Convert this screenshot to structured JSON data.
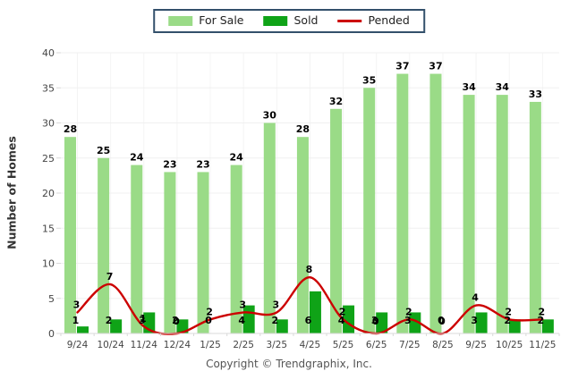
{
  "legend": {
    "for_sale": "For Sale",
    "sold": "Sold",
    "pended": "Pended"
  },
  "ylabel": "Number of Homes",
  "footer": "Copyright © Trendgraphix, Inc.",
  "colors": {
    "for_sale": "#9ADB87",
    "sold": "#0FA317",
    "pended": "#CC0000",
    "grid": "#F0F0F0",
    "vgrid": "#F4F4F4",
    "axis_line": "#D8D8D8",
    "tick": "#D9D9D9",
    "tick_text": "#444444",
    "value_label": "#000000",
    "legend_border": "#33506B"
  },
  "chart_data": {
    "type": "bar",
    "title": "",
    "xlabel": "",
    "ylabel": "Number of Homes",
    "ylim": [
      0,
      40
    ],
    "yticks": [
      0,
      5,
      10,
      15,
      20,
      25,
      30,
      35,
      40
    ],
    "grid": true,
    "legend_position": "top-center",
    "categories": [
      "9/24",
      "10/24",
      "11/24",
      "12/24",
      "1/25",
      "2/25",
      "3/25",
      "4/25",
      "5/25",
      "6/25",
      "7/25",
      "8/25",
      "9/25",
      "10/25",
      "11/25"
    ],
    "series": [
      {
        "name": "For Sale",
        "type": "bar",
        "values": [
          28,
          25,
          24,
          23,
          23,
          24,
          30,
          28,
          32,
          35,
          37,
          37,
          34,
          34,
          33
        ]
      },
      {
        "name": "Sold",
        "type": "bar",
        "values": [
          1,
          2,
          3,
          2,
          0,
          4,
          2,
          6,
          4,
          3,
          3,
          0,
          3,
          2,
          2
        ]
      },
      {
        "name": "Pended",
        "type": "line",
        "values": [
          3,
          7,
          1,
          0,
          2,
          3,
          3,
          8,
          2,
          0,
          2,
          0,
          4,
          2,
          2
        ]
      }
    ]
  }
}
